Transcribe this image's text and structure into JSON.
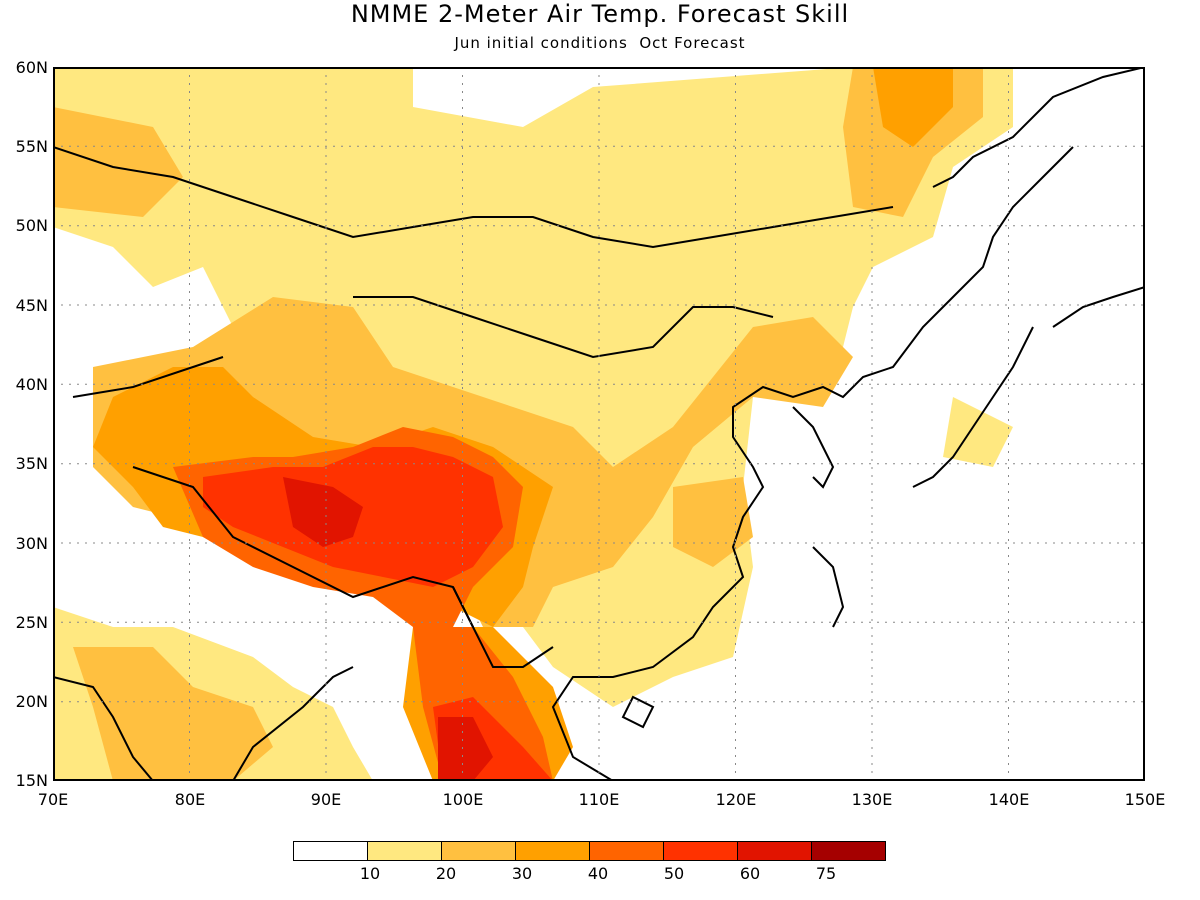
{
  "title": "NMME 2-Meter Air Temp. Forecast Skill",
  "subtitle": "Jun initial conditions  Oct Forecast",
  "map": {
    "lon_min": 70,
    "lon_max": 150,
    "lat_min": 15,
    "lat_max": 60,
    "lat_ticks": [
      "60N",
      "55N",
      "50N",
      "45N",
      "40N",
      "35N",
      "30N",
      "25N",
      "20N",
      "15N"
    ],
    "lon_ticks": [
      "70E",
      "80E",
      "90E",
      "100E",
      "110E",
      "120E",
      "130E",
      "140E",
      "150E"
    ],
    "gridlines": "dotted"
  },
  "legend": {
    "colors": [
      "#ffffff",
      "#ffe880",
      "#ffc040",
      "#ffa000",
      "#ff6400",
      "#ff3200",
      "#e11400",
      "#a50000"
    ],
    "labels": [
      "10",
      "20",
      "30",
      "40",
      "50",
      "60",
      "75"
    ]
  }
}
